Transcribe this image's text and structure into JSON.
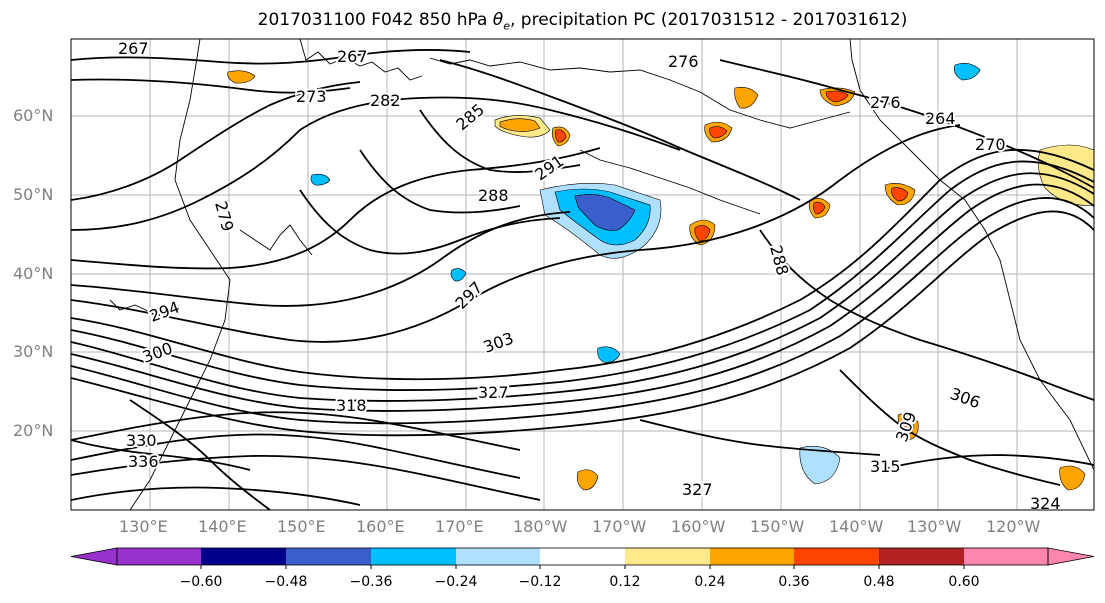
{
  "title": {
    "prefix": "2017031100 F042 850 hPa ",
    "symbol": "θ",
    "subscript": "e",
    "suffix": ", precipitation PC (2017031512 - 2017031612)"
  },
  "lat_labels": [
    "60°N",
    "50°N",
    "40°N",
    "30°N",
    "20°N"
  ],
  "lon_labels": [
    "130°E",
    "140°E",
    "150°E",
    "160°E",
    "170°E",
    "180°W",
    "170°W",
    "160°W",
    "150°W",
    "140°W",
    "130°W",
    "120°W"
  ],
  "contour_labels": [
    "267",
    "267",
    "276",
    "282",
    "285",
    "291",
    "288",
    "288",
    "297",
    "303",
    "306",
    "309",
    "318",
    "327",
    "330",
    "336",
    "327",
    "315",
    "324",
    "264",
    "270",
    "273",
    "276",
    "279",
    "294",
    "300"
  ],
  "colorbar": {
    "ticks": [
      "−0.60",
      "−0.48",
      "−0.36",
      "−0.24",
      "−0.12",
      "0.12",
      "0.24",
      "0.36",
      "0.48",
      "0.60"
    ],
    "colors": [
      "#9932cc",
      "#00008b",
      "#3a5fcd",
      "#00bfff",
      "#b0e0ff",
      "#ffffff",
      "#ffe98a",
      "#ffa500",
      "#ff4500",
      "#b22222",
      "#ff86b0"
    ]
  },
  "precip_colors": {
    "pos1": "#ffe98a",
    "pos2": "#ffa500",
    "pos3": "#ff4500",
    "neg1": "#b0e0ff",
    "neg2": "#00bfff",
    "neg3": "#3a5fcd"
  }
}
